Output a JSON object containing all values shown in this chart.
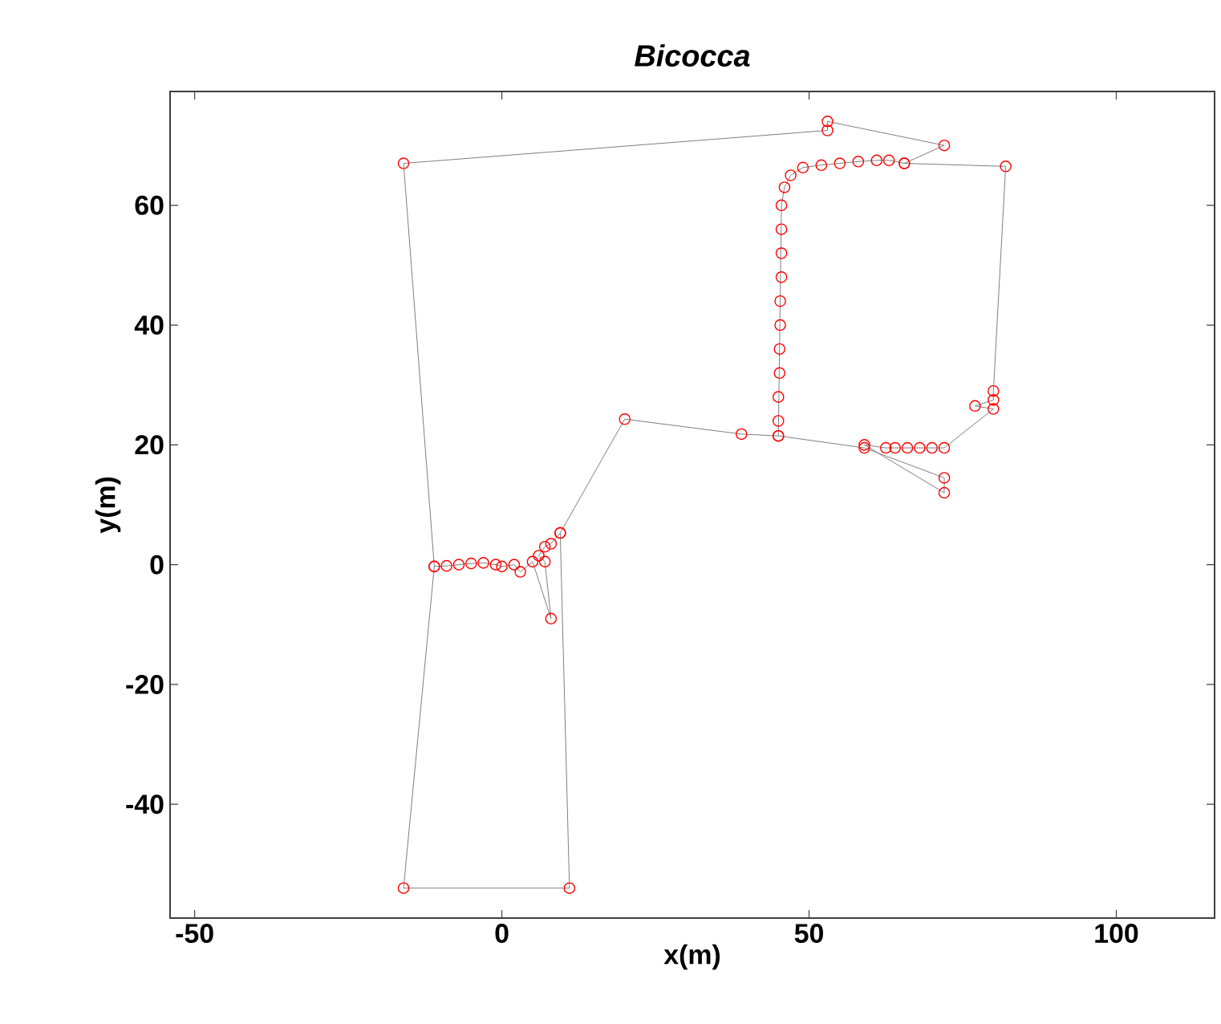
{
  "chart_data": {
    "type": "scatter",
    "title": "Bicocca",
    "xlabel": "x(m)",
    "ylabel": "y(m)",
    "xlim": [
      -54,
      116
    ],
    "ylim": [
      -59,
      79
    ],
    "xticks": [
      -50,
      0,
      50,
      100
    ],
    "yticks": [
      -40,
      -20,
      0,
      20,
      40,
      60
    ],
    "grid": false,
    "series": [
      {
        "type": "line",
        "color": "#808080",
        "marker": "none",
        "line_style": "solid",
        "x": [
          65.5,
          72,
          53,
          53,
          -16,
          -11,
          -16,
          11,
          9.5,
          20,
          39,
          45,
          45.5,
          46,
          47,
          49,
          52,
          55,
          58,
          61,
          63,
          65.5,
          82,
          80,
          80,
          77,
          80,
          72,
          70,
          68,
          66,
          64,
          62.5,
          59,
          72,
          72,
          59,
          45,
          null,
          -11,
          -9,
          -7,
          -5,
          -3,
          -1,
          0,
          2,
          3,
          5,
          8,
          7,
          6,
          7,
          8,
          9.5
        ],
        "values": [
          67,
          70,
          74,
          72.5,
          67,
          -0.3,
          -54,
          -54,
          5.3,
          24.3,
          21.8,
          21.5,
          60,
          63,
          65,
          66.3,
          66.7,
          67,
          67.3,
          67.5,
          67.5,
          67,
          66.5,
          29,
          27.5,
          26.5,
          26,
          19.5,
          19.5,
          19.5,
          19.5,
          19.5,
          19.5,
          20,
          12,
          14.5,
          19.5,
          21.5,
          null,
          -0.3,
          -0.2,
          0,
          0.2,
          0.3,
          0,
          -0.3,
          0,
          -1.2,
          0.5,
          -9,
          0.5,
          1.5,
          3,
          3.5,
          5.3
        ]
      },
      {
        "color": "#ff0000",
        "marker": "circle",
        "x": [
          65.5,
          72,
          53,
          53,
          -16,
          -11,
          -16,
          11,
          9.5,
          20,
          39,
          45,
          45,
          45,
          45.2,
          45.2,
          45.3,
          45.3,
          45.5,
          45.5,
          45.5,
          45.5,
          46,
          47,
          49,
          52,
          55,
          58,
          61,
          63,
          65.5,
          82,
          80,
          80,
          77,
          80,
          72,
          70,
          68,
          66,
          64,
          62.5,
          59,
          72,
          72,
          59,
          45,
          null,
          -11,
          -9,
          -7,
          -5,
          -3,
          -1,
          0,
          2,
          3,
          5,
          8,
          7,
          6,
          7,
          8,
          9.5
        ],
        "values": [
          67,
          70,
          74,
          72.5,
          67,
          -0.3,
          -54,
          -54,
          5.3,
          24.3,
          21.8,
          21.5,
          24,
          28,
          32,
          36,
          40,
          44,
          48,
          52,
          56,
          60,
          63,
          65,
          66.3,
          66.7,
          67,
          67.3,
          67.5,
          67.5,
          67,
          66.5,
          29,
          27.5,
          26.5,
          26,
          19.5,
          19.5,
          19.5,
          19.5,
          19.5,
          19.5,
          20,
          12,
          14.5,
          19.5,
          21.5,
          null,
          -0.3,
          -0.2,
          0,
          0.2,
          0.3,
          0,
          -0.3,
          0,
          -1.2,
          0.5,
          -9,
          0.5,
          1.5,
          3,
          3.5,
          5.3
        ]
      }
    ]
  }
}
